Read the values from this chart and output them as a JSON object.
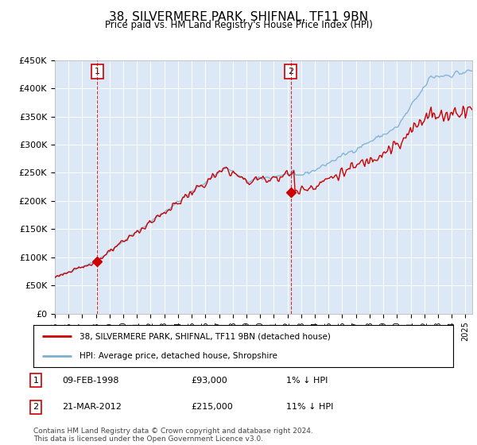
{
  "title": "38, SILVERMERE PARK, SHIFNAL, TF11 9BN",
  "subtitle": "Price paid vs. HM Land Registry's House Price Index (HPI)",
  "legend_line1": "38, SILVERMERE PARK, SHIFNAL, TF11 9BN (detached house)",
  "legend_line2": "HPI: Average price, detached house, Shropshire",
  "footnote": "Contains HM Land Registry data © Crown copyright and database right 2024.\nThis data is licensed under the Open Government Licence v3.0.",
  "sale1_date": "09-FEB-1998",
  "sale1_price": "£93,000",
  "sale1_hpi": "1% ↓ HPI",
  "sale1_year": 1998.1,
  "sale1_value": 93000,
  "sale2_date": "21-MAR-2012",
  "sale2_price": "£215,000",
  "sale2_hpi": "11% ↓ HPI",
  "sale2_year": 2012.25,
  "sale2_value": 215000,
  "hpi_color": "#7bafd4",
  "price_color": "#cc0000",
  "dashed_color": "#cc0000",
  "background_chart": "#dce8f5",
  "ylim": [
    0,
    450000
  ],
  "yticks": [
    0,
    50000,
    100000,
    150000,
    200000,
    250000,
    300000,
    350000,
    400000,
    450000
  ],
  "ytick_labels": [
    "£0",
    "£50K",
    "£100K",
    "£150K",
    "£200K",
    "£250K",
    "£300K",
    "£350K",
    "£400K",
    "£450K"
  ],
  "xlim_start": 1995.0,
  "xlim_end": 2025.5,
  "grid_color": "#ffffff"
}
